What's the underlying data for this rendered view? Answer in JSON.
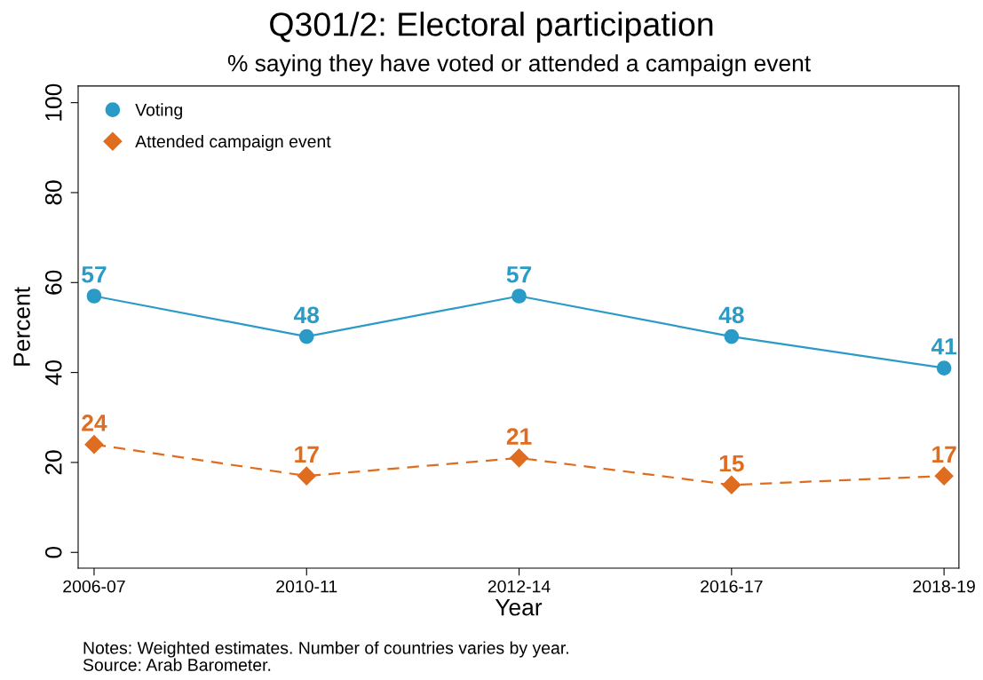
{
  "chart_data": {
    "type": "line",
    "title": "Q301/2: Electoral participation",
    "subtitle": "% saying they have voted or attended a campaign event",
    "xlabel": "Year",
    "ylabel": "Percent",
    "categories": [
      "2006-07",
      "2010-11",
      "2012-14",
      "2016-17",
      "2018-19"
    ],
    "series": [
      {
        "name": "Voting",
        "color": "#2a9ac6",
        "values": [
          57,
          48,
          57,
          48,
          41
        ],
        "marker": "circle",
        "line_style": "solid"
      },
      {
        "name": "Attended campaign event",
        "color": "#e06c1f",
        "values": [
          24,
          17,
          21,
          15,
          17
        ],
        "marker": "diamond",
        "line_style": "dashed"
      }
    ],
    "ylim": [
      -3.5,
      103.7
    ],
    "yticks": [
      0,
      20,
      40,
      60,
      80,
      100
    ],
    "grid": false,
    "legend": "top left",
    "data_labels": true,
    "annotations": [
      "Notes: Weighted estimates. Number of countries varies by year.",
      "Source: Arab Barometer."
    ]
  }
}
